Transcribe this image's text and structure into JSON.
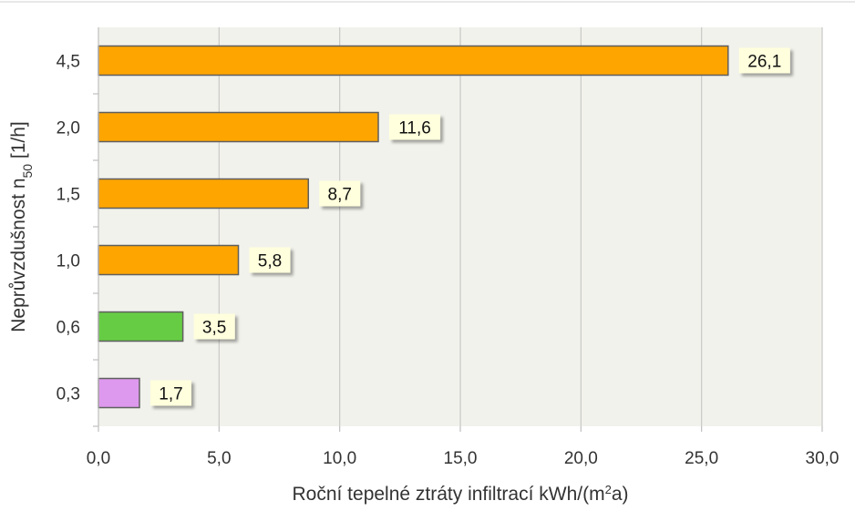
{
  "chart_data": {
    "type": "bar",
    "orientation": "horizontal",
    "categories": [
      "0,3",
      "0,6",
      "1,0",
      "1,5",
      "2,0",
      "4,5"
    ],
    "values": [
      1.7,
      3.5,
      5.8,
      8.7,
      11.6,
      26.1
    ],
    "value_labels": [
      "1,7",
      "3,5",
      "5,8",
      "8,7",
      "11,6",
      "26,1"
    ],
    "bar_colors": [
      "#dd99ee",
      "#66cc44",
      "#ffa500",
      "#ffa500",
      "#ffa500",
      "#ffa500"
    ],
    "label_bg_color": "#ffffdd",
    "plot_bg_color": "#f2f2ec",
    "xlim": [
      0,
      30
    ],
    "xticks": [
      0,
      5,
      10,
      15,
      20,
      25,
      30
    ],
    "xtick_labels": [
      "0,0",
      "5,0",
      "10,0",
      "15,0",
      "20,0",
      "25,0",
      "30,0"
    ],
    "grid": "vertical",
    "legend": "none",
    "xlabel": {
      "main": "Roční tepelné ztráty infiltrací kWh/(m",
      "sup": "2",
      "end": "a)"
    },
    "ylabel": {
      "main": "Neprůvzdušnost n",
      "sub": "50",
      "end": " [1/h]"
    }
  }
}
